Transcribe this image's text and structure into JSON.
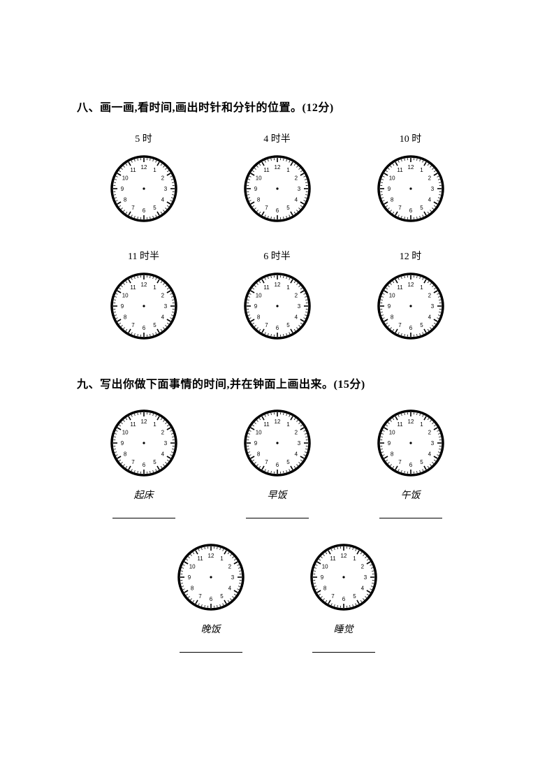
{
  "section8": {
    "title": "八、画一画,看时间,画出时针和分针的位置。(12分)",
    "row1": [
      {
        "label": "5 时"
      },
      {
        "label": "4 时半"
      },
      {
        "label": "10 时"
      }
    ],
    "row2": [
      {
        "label": "11 时半"
      },
      {
        "label": "6 时半"
      },
      {
        "label": "12 时"
      }
    ]
  },
  "section9": {
    "title": "九、写出你做下面事情的时间,并在钟面上画出来。(15分)",
    "row1": [
      {
        "label": "起床"
      },
      {
        "label": "早饭"
      },
      {
        "label": "午饭"
      }
    ],
    "row2": [
      {
        "label": "晚饭"
      },
      {
        "label": "睡觉"
      }
    ]
  },
  "clock": {
    "numerals": [
      "12",
      "1",
      "2",
      "3",
      "4",
      "5",
      "6",
      "7",
      "8",
      "9",
      "10",
      "11"
    ],
    "outer_stroke": "#000000",
    "outer_stroke_width": 3.5,
    "tick_color": "#000000",
    "numeral_fontsize": 8,
    "face_fill": "#ffffff"
  },
  "colors": {
    "text": "#000000",
    "bg": "#ffffff"
  }
}
